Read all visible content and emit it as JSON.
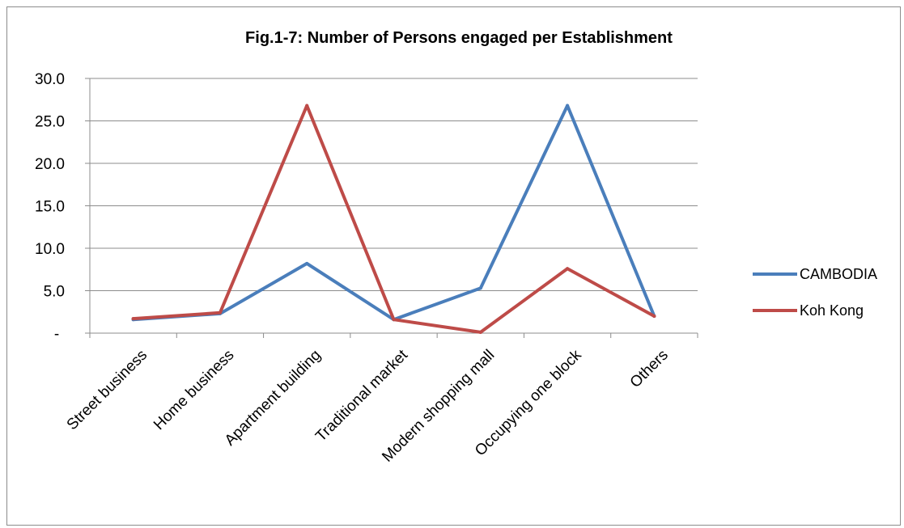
{
  "chart_data": {
    "type": "line",
    "title": "Fig.1-7:  Number of Persons engaged per Establishment",
    "categories": [
      "Street business",
      "Home business",
      "Apartment building",
      "Traditional market",
      "Modern shopping mall",
      "Occupying  one block",
      "Others"
    ],
    "y_tick_labels": [
      "-",
      "5.0",
      "10.0",
      "15.0",
      "20.0",
      "25.0",
      "30.0"
    ],
    "ylim": [
      0,
      30
    ],
    "grid": true,
    "legend_position": "right",
    "series": [
      {
        "name": "CAMBODIA",
        "color": "#4a7ebb",
        "values": [
          1.6,
          2.3,
          8.2,
          1.6,
          5.3,
          26.8,
          2.0
        ]
      },
      {
        "name": "Koh Kong",
        "color": "#be4b48",
        "values": [
          1.7,
          2.4,
          26.8,
          1.6,
          0.1,
          7.6,
          2.0
        ]
      }
    ]
  }
}
